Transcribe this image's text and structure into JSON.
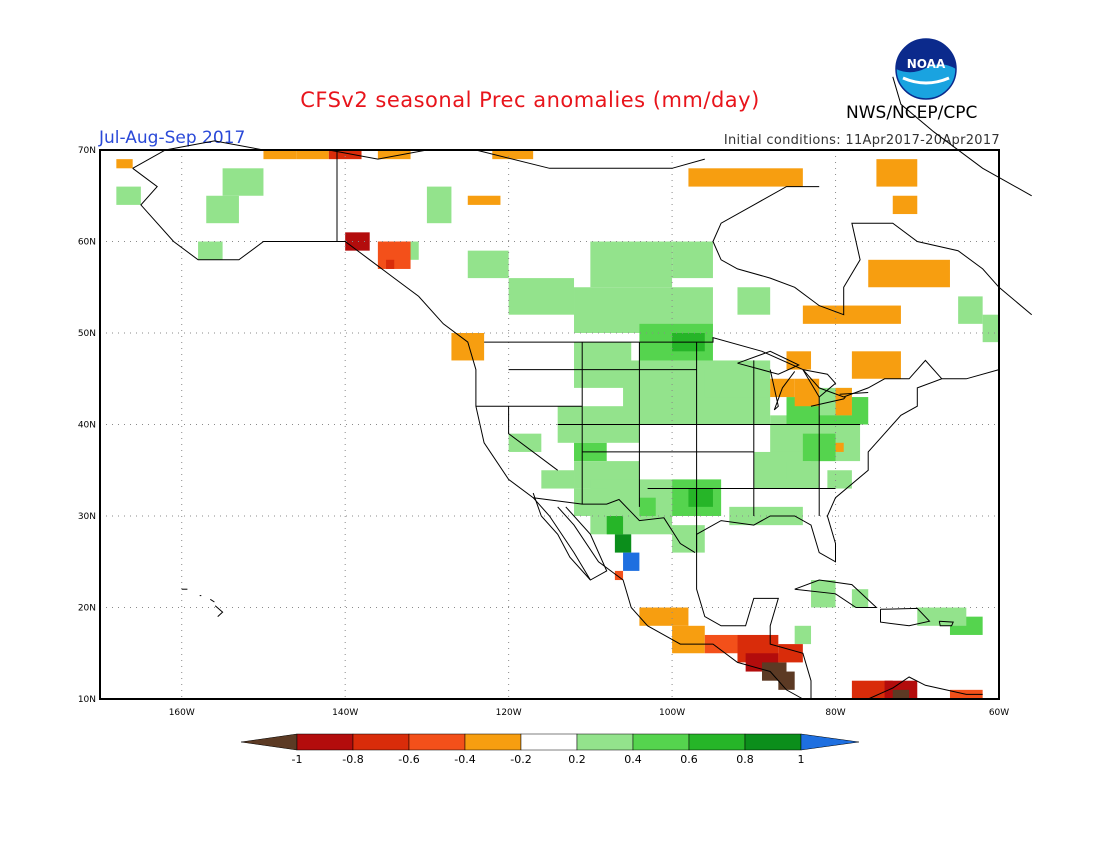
{
  "header": {
    "title": "CFSv2 seasonal Prec anomalies (mm/day)",
    "season": "Jul-Aug-Sep 2017",
    "initial_conditions": "Initial conditions: 11Apr2017-20Apr2017",
    "agency": "NWS/NCEP/CPC",
    "logo_text": "NOAA"
  },
  "axes": {
    "lon_labels": [
      "160W",
      "140W",
      "120W",
      "100W",
      "80W",
      "60W"
    ],
    "lat_labels": [
      "70N",
      "60N",
      "50N",
      "40N",
      "30N",
      "20N",
      "10N"
    ],
    "lon_range": [
      -170,
      -60
    ],
    "lat_range": [
      10,
      70
    ]
  },
  "colorbar": {
    "ticks": [
      "-1",
      "-0.8",
      "-0.6",
      "-0.4",
      "-0.2",
      "0.2",
      "0.4",
      "0.6",
      "0.8",
      "1"
    ],
    "colors": [
      "#5c3a24",
      "#b30c0c",
      "#d92c0a",
      "#f3501a",
      "#f79e10",
      "#ffffff",
      "#93e38c",
      "#55d44e",
      "#26b528",
      "#0b8e1b",
      "#1e6fe0"
    ]
  }
}
